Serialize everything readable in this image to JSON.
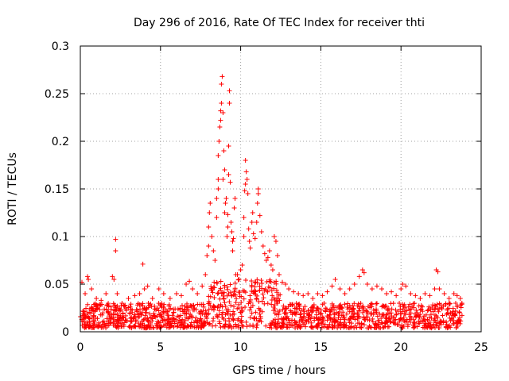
{
  "chart_data": {
    "type": "scatter",
    "title": "Day 296 of 2016, Rate Of TEC Index for receiver thti",
    "xlabel": "GPS time / hours",
    "ylabel": "ROTI / TECUs",
    "xlim": [
      0,
      25
    ],
    "ylim": [
      0,
      0.3
    ],
    "xticks": [
      0,
      5,
      10,
      15,
      20,
      25
    ],
    "xtick_labels": [
      "0",
      "5",
      "10",
      "15",
      "20",
      "25"
    ],
    "yticks": [
      0,
      0.05,
      0.1,
      0.15,
      0.2,
      0.25,
      0.3
    ],
    "ytick_labels": [
      "0",
      "0.05",
      "0.1",
      "0.15",
      "0.2",
      "0.25",
      "0.3"
    ],
    "grid": true,
    "marker": "+",
    "series": [
      {
        "name": "ROTI",
        "color": "#ff0000",
        "points": [
          [
            0.1,
            0.052
          ],
          [
            0.3,
            0.04
          ],
          [
            0.45,
            0.058
          ],
          [
            0.5,
            0.055
          ],
          [
            0.7,
            0.045
          ],
          [
            1.0,
            0.035
          ],
          [
            1.3,
            0.033
          ],
          [
            1.6,
            0.04
          ],
          [
            2.0,
            0.058
          ],
          [
            2.1,
            0.055
          ],
          [
            2.2,
            0.097
          ],
          [
            2.2,
            0.085
          ],
          [
            2.3,
            0.04
          ],
          [
            2.6,
            0.03
          ],
          [
            3.0,
            0.035
          ],
          [
            3.4,
            0.038
          ],
          [
            3.7,
            0.04
          ],
          [
            3.9,
            0.071
          ],
          [
            4.0,
            0.045
          ],
          [
            4.2,
            0.048
          ],
          [
            4.5,
            0.035
          ],
          [
            4.9,
            0.045
          ],
          [
            5.2,
            0.04
          ],
          [
            5.6,
            0.035
          ],
          [
            6.0,
            0.04
          ],
          [
            6.3,
            0.038
          ],
          [
            6.6,
            0.05
          ],
          [
            6.8,
            0.053
          ],
          [
            7.0,
            0.045
          ],
          [
            7.3,
            0.04
          ],
          [
            7.6,
            0.048
          ],
          [
            7.8,
            0.06
          ],
          [
            7.9,
            0.08
          ],
          [
            8.0,
            0.09
          ],
          [
            8.0,
            0.11
          ],
          [
            8.05,
            0.125
          ],
          [
            8.1,
            0.135
          ],
          [
            8.2,
            0.1
          ],
          [
            8.3,
            0.085
          ],
          [
            8.4,
            0.075
          ],
          [
            8.5,
            0.12
          ],
          [
            8.5,
            0.14
          ],
          [
            8.6,
            0.15
          ],
          [
            8.6,
            0.16
          ],
          [
            8.6,
            0.185
          ],
          [
            8.65,
            0.2
          ],
          [
            8.7,
            0.215
          ],
          [
            8.75,
            0.222
          ],
          [
            8.75,
            0.232
          ],
          [
            8.8,
            0.24
          ],
          [
            8.8,
            0.26
          ],
          [
            8.85,
            0.268
          ],
          [
            8.9,
            0.23
          ],
          [
            8.9,
            0.16
          ],
          [
            8.95,
            0.19
          ],
          [
            9.0,
            0.17
          ],
          [
            9.0,
            0.125
          ],
          [
            9.05,
            0.135
          ],
          [
            9.1,
            0.14
          ],
          [
            9.15,
            0.1
          ],
          [
            9.2,
            0.11
          ],
          [
            9.2,
            0.123
          ],
          [
            9.25,
            0.195
          ],
          [
            9.25,
            0.165
          ],
          [
            9.3,
            0.24
          ],
          [
            9.3,
            0.253
          ],
          [
            9.35,
            0.157
          ],
          [
            9.4,
            0.115
          ],
          [
            9.45,
            0.105
          ],
          [
            9.5,
            0.095
          ],
          [
            9.5,
            0.085
          ],
          [
            9.55,
            0.098
          ],
          [
            9.6,
            0.13
          ],
          [
            9.65,
            0.14
          ],
          [
            9.7,
            0.06
          ],
          [
            9.8,
            0.06
          ],
          [
            9.9,
            0.055
          ],
          [
            10.0,
            0.065
          ],
          [
            10.1,
            0.07
          ],
          [
            10.2,
            0.1
          ],
          [
            10.2,
            0.12
          ],
          [
            10.25,
            0.148
          ],
          [
            10.3,
            0.155
          ],
          [
            10.3,
            0.18
          ],
          [
            10.35,
            0.168
          ],
          [
            10.4,
            0.16
          ],
          [
            10.45,
            0.145
          ],
          [
            10.5,
            0.108
          ],
          [
            10.55,
            0.095
          ],
          [
            10.6,
            0.088
          ],
          [
            10.7,
            0.115
          ],
          [
            10.75,
            0.125
          ],
          [
            10.8,
            0.103
          ],
          [
            10.9,
            0.098
          ],
          [
            11.0,
            0.115
          ],
          [
            11.05,
            0.135
          ],
          [
            11.1,
            0.15
          ],
          [
            11.1,
            0.145
          ],
          [
            11.2,
            0.122
          ],
          [
            11.3,
            0.105
          ],
          [
            11.4,
            0.09
          ],
          [
            11.5,
            0.082
          ],
          [
            11.6,
            0.075
          ],
          [
            11.7,
            0.078
          ],
          [
            11.8,
            0.085
          ],
          [
            11.9,
            0.07
          ],
          [
            12.0,
            0.065
          ],
          [
            12.1,
            0.1
          ],
          [
            12.2,
            0.095
          ],
          [
            12.3,
            0.08
          ],
          [
            12.4,
            0.06
          ],
          [
            12.6,
            0.052
          ],
          [
            12.8,
            0.05
          ],
          [
            13.0,
            0.045
          ],
          [
            13.3,
            0.042
          ],
          [
            13.6,
            0.04
          ],
          [
            13.9,
            0.038
          ],
          [
            14.2,
            0.04
          ],
          [
            14.5,
            0.035
          ],
          [
            14.8,
            0.04
          ],
          [
            15.1,
            0.038
          ],
          [
            15.4,
            0.042
          ],
          [
            15.7,
            0.048
          ],
          [
            15.9,
            0.055
          ],
          [
            16.2,
            0.045
          ],
          [
            16.5,
            0.04
          ],
          [
            16.8,
            0.045
          ],
          [
            17.1,
            0.05
          ],
          [
            17.4,
            0.058
          ],
          [
            17.6,
            0.065
          ],
          [
            17.7,
            0.062
          ],
          [
            17.9,
            0.05
          ],
          [
            18.2,
            0.045
          ],
          [
            18.5,
            0.048
          ],
          [
            18.8,
            0.045
          ],
          [
            19.1,
            0.04
          ],
          [
            19.4,
            0.042
          ],
          [
            19.7,
            0.038
          ],
          [
            20.0,
            0.045
          ],
          [
            20.1,
            0.05
          ],
          [
            20.3,
            0.048
          ],
          [
            20.6,
            0.04
          ],
          [
            20.9,
            0.038
          ],
          [
            21.2,
            0.035
          ],
          [
            21.5,
            0.04
          ],
          [
            21.8,
            0.038
          ],
          [
            22.1,
            0.045
          ],
          [
            22.2,
            0.065
          ],
          [
            22.3,
            0.063
          ],
          [
            22.4,
            0.045
          ],
          [
            22.7,
            0.04
          ],
          [
            23.0,
            0.035
          ],
          [
            23.3,
            0.04
          ],
          [
            23.5,
            0.038
          ],
          [
            23.7,
            0.035
          ],
          [
            23.8,
            0.03
          ]
        ],
        "band": {
          "description": "dense cloud of ROTI values across full day",
          "x_range": [
            0.0,
            23.85
          ],
          "y_floor": 0.004,
          "y_typical_max": 0.03
        }
      }
    ]
  }
}
